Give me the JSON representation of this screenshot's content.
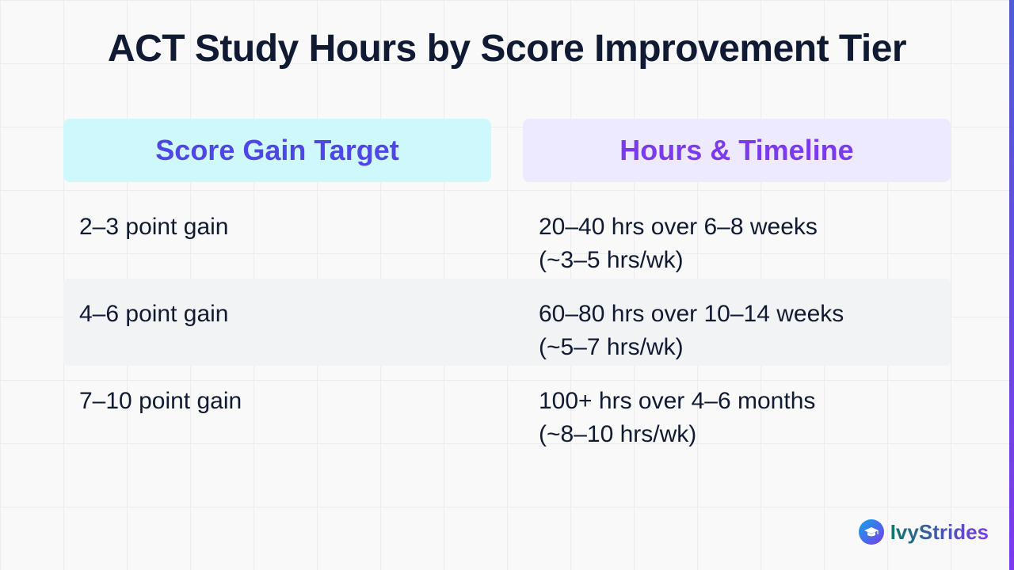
{
  "title": "ACT Study Hours by Score Improvement Tier",
  "table": {
    "headers": [
      "Score Gain Target",
      "Hours & Timeline"
    ],
    "rows": [
      {
        "target": "2–3 point gain",
        "hours": "20–40 hrs over 6–8 weeks",
        "pace": "(~3–5 hrs/wk)"
      },
      {
        "target": "4–6 point gain",
        "hours": "60–80 hrs over 10–14 weeks",
        "pace": "(~5–7 hrs/wk)"
      },
      {
        "target": "7–10 point gain",
        "hours": "100+ hrs over 4–6 months",
        "pace": "(~8–10 hrs/wk)"
      }
    ]
  },
  "brand": {
    "name": "IvyStrides",
    "icon": "graduation-cap-icon"
  },
  "colors": {
    "title": "#111a33",
    "header_left_bg": "#cff8fc",
    "header_left_text": "#4f46e5",
    "header_right_bg": "#ede9fe",
    "header_right_text": "#7c3aed",
    "row_shade": "#f2f3f5",
    "accent": "#7c3aed"
  }
}
